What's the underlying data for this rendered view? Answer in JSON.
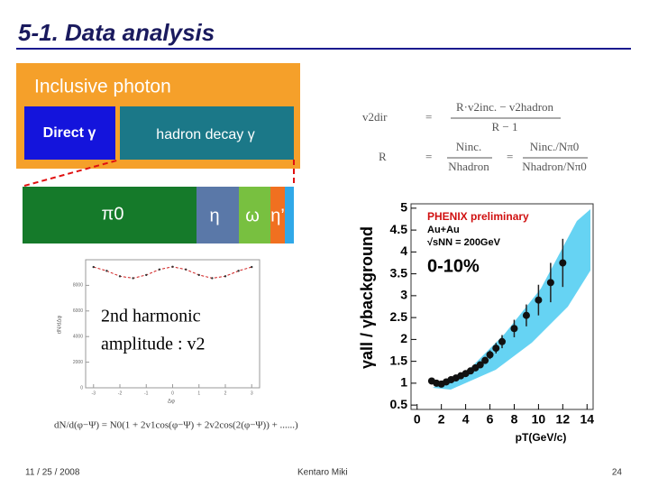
{
  "header": {
    "title": "5-1. Data analysis"
  },
  "diagram": {
    "inclusive": "Inclusive photon",
    "direct": "Direct γ",
    "hadron": "hadron decay γ",
    "pi0": "π0",
    "eta": "η",
    "omega": "ω",
    "etaprime": "η’"
  },
  "formulas": {
    "equals": "=",
    "v2": {
      "lhs": "v2dir",
      "num": "R·v2inc. − v2hadron",
      "den": "R − 1"
    },
    "ratio": {
      "lhs": "R",
      "num1": "Ninc.",
      "den1": "Nhadron",
      "num2": "Ninc./Nπ0",
      "den2": "Nhadron/Nπ0"
    }
  },
  "phi_plot": {
    "ylabel": "dN/dΔφ",
    "xlabel": "Δφ",
    "x": [
      -3,
      -2.5,
      -2,
      -1.5,
      -1,
      -0.5,
      0,
      0.5,
      1,
      1.5,
      2,
      2.5,
      3
    ],
    "values": [
      9430,
      9130,
      8710,
      8560,
      8810,
      9240,
      9450,
      9240,
      8810,
      8560,
      8710,
      9130,
      9430
    ],
    "xlim": [
      -3.3,
      3.3
    ],
    "ylim": [
      0,
      10000
    ],
    "xticks": [
      -3,
      -2,
      -1,
      0,
      1,
      2,
      3
    ],
    "yticks": [
      0,
      2000,
      4000,
      6000,
      8000
    ],
    "note1": "2nd harmonic",
    "note2": "amplitude : v2",
    "formula": "dN/d(φ−Ψ) = N0(1 + 2v1cos(φ−Ψ) + 2v2cos(2(φ−Ψ)) + ......)"
  },
  "ratio_plot": {
    "ylabel": "γall / γbackground",
    "xlabel": "pT(GeV/c)",
    "legend": [
      "PHENIX preliminary",
      "Au+Au",
      "√sNN = 200GeV"
    ],
    "centrality": "0-10%",
    "x": [
      1.2,
      1.6,
      2,
      2.4,
      2.8,
      3.2,
      3.6,
      4,
      4.4,
      4.8,
      5.2,
      5.6,
      6,
      6.5,
      7,
      8,
      9,
      10,
      11,
      12
    ],
    "values": [
      1.05,
      1,
      0.98,
      1.03,
      1.08,
      1.12,
      1.17,
      1.22,
      1.28,
      1.35,
      1.42,
      1.52,
      1.65,
      1.8,
      1.95,
      2.25,
      2.55,
      2.9,
      3.3,
      3.75
    ],
    "errors": [
      0.05,
      0.05,
      0.05,
      0.05,
      0.05,
      0.05,
      0.05,
      0.06,
      0.06,
      0.07,
      0.07,
      0.08,
      0.1,
      0.12,
      0.15,
      0.2,
      0.25,
      0.35,
      0.45,
      0.55
    ],
    "xlim": [
      -0.5,
      14.5
    ],
    "ylim": [
      0.4,
      5.1
    ],
    "xticks": [
      0,
      2,
      4,
      6,
      8,
      10,
      12,
      14
    ],
    "yticks": [
      0.5,
      1,
      1.5,
      2,
      2.5,
      3,
      3.5,
      4,
      4.5,
      5
    ]
  },
  "footer": {
    "date": "11 / 25 / 2008",
    "author": "Kentaro Miki",
    "page": "24"
  }
}
